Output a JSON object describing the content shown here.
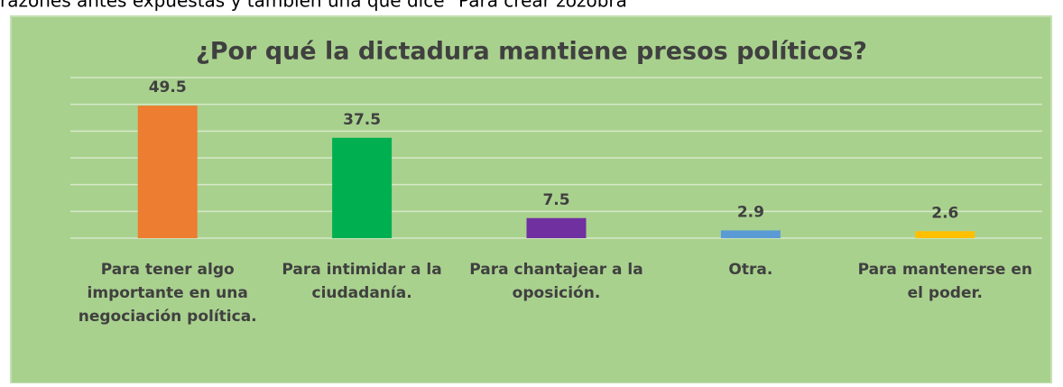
{
  "caption": "razones antes expuestas y también una que dice \"Para crear zozobra",
  "chart_data": {
    "type": "bar",
    "title": "¿Por qué la dictadura mantiene presos políticos?",
    "categories": [
      "Para tener algo importante en una negociación política.",
      "Para intimidar a la ciudadanía.",
      "Para chantajear a la oposición.",
      "Otra.",
      "Para mantenerse en el poder."
    ],
    "values": [
      49.5,
      37.5,
      7.5,
      2.9,
      2.6
    ],
    "colors": [
      "#ed7d31",
      "#00b050",
      "#7030a0",
      "#5b9bd5",
      "#ffc000"
    ],
    "ylim": [
      0,
      60
    ],
    "yticks": [
      0,
      10,
      20,
      30,
      40,
      50,
      60
    ],
    "grid": true
  }
}
